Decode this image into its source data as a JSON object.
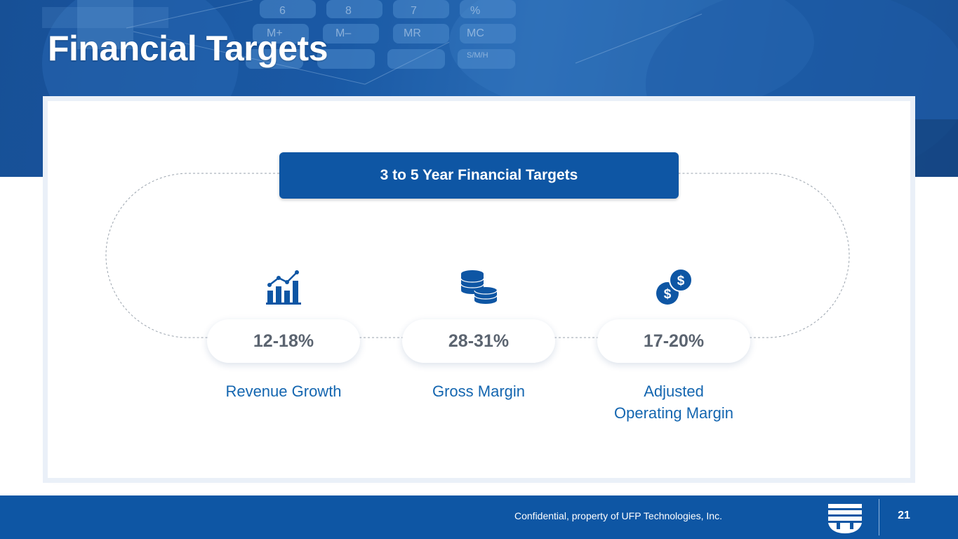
{
  "slide": {
    "title": "Financial Targets",
    "header": "3 to 5 Year Financial Targets",
    "metrics": [
      {
        "value": "12-18%",
        "label": "Revenue Growth",
        "icon": "growth-chart-icon"
      },
      {
        "value": "28-31%",
        "label": "Gross Margin",
        "icon": "coin-stack-icon"
      },
      {
        "value": "17-20%",
        "label_line1": "Adjusted",
        "label_line2": "Operating Margin",
        "icon": "dollar-coins-icon"
      }
    ]
  },
  "footer": {
    "confidential": "Confidential, property of UFP Technologies, Inc.",
    "page_number": "21",
    "logo": "ufp-logo"
  },
  "colors": {
    "brand_blue": "#0e56a4",
    "label_blue": "#1466b0",
    "metric_gray": "#5b6470",
    "card_border": "#eaf0f8"
  }
}
